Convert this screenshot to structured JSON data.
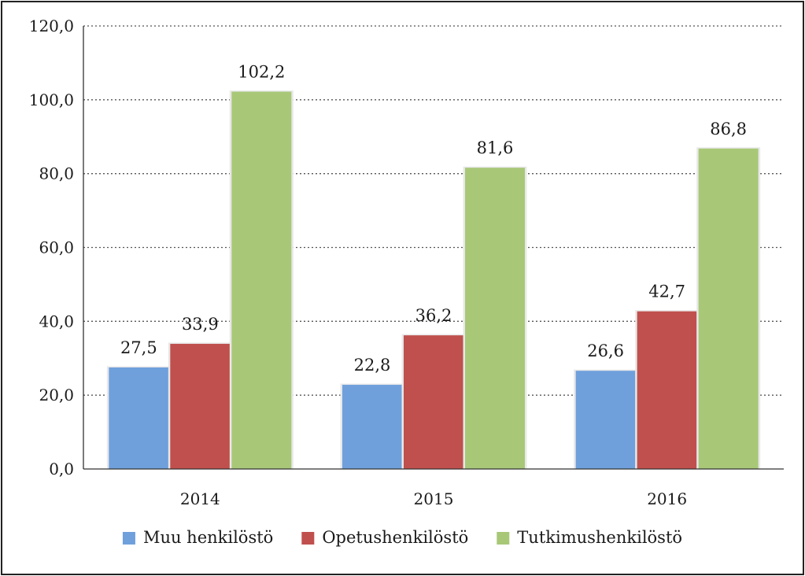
{
  "chart_data": {
    "type": "bar",
    "title": "",
    "xlabel": "",
    "ylabel": "",
    "ylim": [
      0,
      120
    ],
    "ytick_values": [
      0,
      20,
      40,
      60,
      80,
      100,
      120
    ],
    "ytick_labels": [
      "0,0",
      "20,0",
      "40,0",
      "60,0",
      "80,0",
      "100,0",
      "120,0"
    ],
    "categories": [
      "2014",
      "2015",
      "2016"
    ],
    "series": [
      {
        "name": "Muu henkilöstö",
        "color": "#6fa0dc",
        "values": [
          27.5,
          22.8,
          26.6
        ],
        "labels": [
          "27,5",
          "22,8",
          "26,6"
        ]
      },
      {
        "name": "Opetushenkilöstö",
        "color": "#c0504d",
        "values": [
          33.9,
          36.2,
          42.7
        ],
        "labels": [
          "33,9",
          "36,2",
          "42,7"
        ]
      },
      {
        "name": "Tutkimushenkilöstö",
        "color": "#a8c878",
        "values": [
          102.2,
          81.6,
          86.8
        ],
        "labels": [
          "102,2",
          "81,6",
          "86,8"
        ]
      }
    ],
    "grid": true,
    "grid_style": "dotted",
    "legend_position": "bottom"
  }
}
